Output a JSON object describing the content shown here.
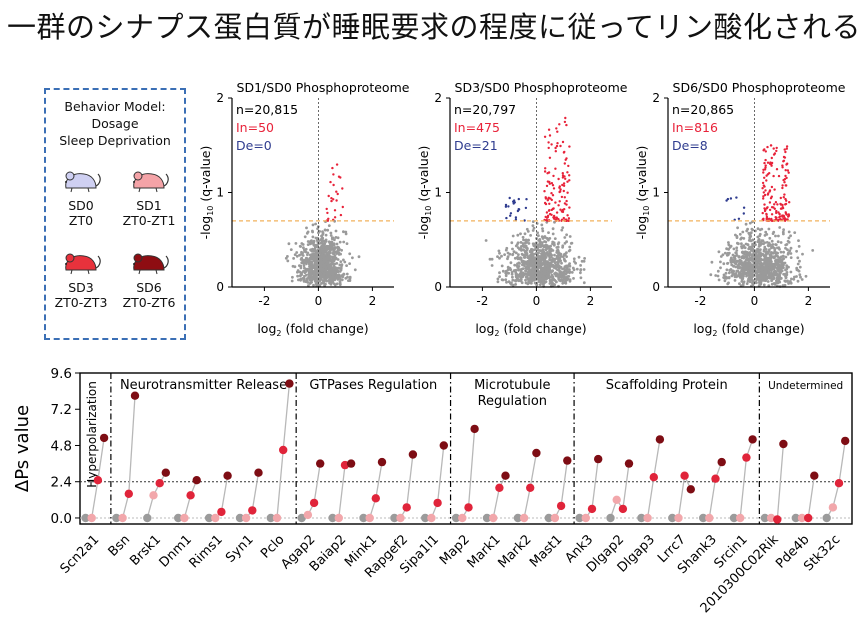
{
  "title": "一群のシナプス蛋白質が睡眠要求の程度に従ってリン酸化される",
  "model": {
    "title_lines": [
      "Behavior Model:",
      "Dosage",
      "Sleep Deprivation"
    ],
    "groups": [
      {
        "name": "SD0",
        "time": "ZT0",
        "color": "#cfd0f2"
      },
      {
        "name": "SD1",
        "time": "ZT0-ZT1",
        "color": "#f4a3a7"
      },
      {
        "name": "SD3",
        "time": "ZT0-ZT3",
        "color": "#e8323c"
      },
      {
        "name": "SD6",
        "time": "ZT0-ZT6",
        "color": "#8e0d12"
      }
    ]
  },
  "volcano": {
    "xlabel": "log2 (fold change)",
    "ylabel": "-log10 (q-value)",
    "xticks": [
      -2,
      0,
      2
    ],
    "yticks": [
      0,
      1,
      2
    ],
    "xlim": [
      -3.2,
      2.8
    ],
    "ylim": [
      0,
      2
    ],
    "threshold_y": 0.7,
    "panels": [
      {
        "title": "SD1/SD0 Phosphoproteome",
        "n": "n=20,815",
        "up": "In=50",
        "down": "De=0",
        "up_count": 50,
        "down_count": 0,
        "spread": 0.55,
        "upmax": 1.4
      },
      {
        "title": "SD3/SD0 Phosphoproteome",
        "n": "n=20,797",
        "up": "In=475",
        "down": "De=21",
        "up_count": 475,
        "down_count": 21,
        "spread": 0.85,
        "upmax": 1.8
      },
      {
        "title": "SD6/SD0 Phosphoproteome",
        "n": "n=20,865",
        "up": "In=816",
        "down": "De=8",
        "up_count": 816,
        "down_count": 8,
        "spread": 0.9,
        "upmax": 1.5
      }
    ],
    "colors": {
      "up": "#e8233a",
      "down": "#2f3c8f",
      "ns": "#9a9a9a",
      "threshold": "#f2b25c"
    }
  },
  "chart_data": {
    "type": "scatter",
    "ylabel": "ΔPs value",
    "ylim": [
      -0.4,
      9.6
    ],
    "yticks": [
      "0.0",
      "2.4",
      "4.8",
      "7.2",
      "9.6"
    ],
    "threshold": 2.4,
    "groups": [
      {
        "label": "Hyperpolarization",
        "span": [
          0,
          0
        ]
      },
      {
        "label": "Neurotransmitter Release",
        "span": [
          1,
          6
        ]
      },
      {
        "label": "GTPases Regulation",
        "span": [
          7,
          11
        ]
      },
      {
        "label": "Microtubule Regulation",
        "span": [
          12,
          15
        ]
      },
      {
        "label": "Scaffolding Protein",
        "span": [
          16,
          21
        ]
      },
      {
        "label": "Undetermined",
        "span": [
          22,
          24
        ]
      }
    ],
    "series_order": [
      "SD0",
      "SD1",
      "SD3",
      "SD6"
    ],
    "genes": [
      {
        "name": "Scn2a1",
        "values": [
          0,
          0,
          2.5,
          5.3
        ]
      },
      {
        "name": "Bsn",
        "values": [
          0,
          0,
          1.6,
          8.1
        ]
      },
      {
        "name": "Brsk1",
        "values": [
          0,
          1.5,
          2.3,
          3.0
        ]
      },
      {
        "name": "Dnm1",
        "values": [
          0,
          0,
          1.5,
          2.5
        ]
      },
      {
        "name": "Rims1",
        "values": [
          0,
          0,
          0.4,
          2.8
        ]
      },
      {
        "name": "Syn1",
        "values": [
          0,
          0,
          0.5,
          3.0
        ]
      },
      {
        "name": "Pclo",
        "values": [
          0,
          0,
          4.5,
          8.9
        ]
      },
      {
        "name": "Agap2",
        "values": [
          0,
          0.2,
          1.0,
          3.6
        ]
      },
      {
        "name": "Baiap2",
        "values": [
          0,
          0,
          3.5,
          3.6
        ]
      },
      {
        "name": "Mink1",
        "values": [
          0,
          0,
          1.3,
          3.7
        ]
      },
      {
        "name": "Rapgef2",
        "values": [
          0,
          0,
          0.7,
          4.2
        ]
      },
      {
        "name": "Sipa1l1",
        "values": [
          0,
          0,
          1.0,
          4.8
        ]
      },
      {
        "name": "Map2",
        "values": [
          0,
          0,
          0.7,
          5.9
        ]
      },
      {
        "name": "Mark1",
        "values": [
          0,
          0,
          2.0,
          2.8
        ]
      },
      {
        "name": "Mark2",
        "values": [
          0,
          0,
          2.0,
          4.3
        ]
      },
      {
        "name": "Mast1",
        "values": [
          0,
          0,
          0.8,
          3.8
        ]
      },
      {
        "name": "Ank3",
        "values": [
          0,
          0,
          0.6,
          3.9
        ]
      },
      {
        "name": "Dlgap2",
        "values": [
          0,
          1.2,
          0.6,
          3.6
        ]
      },
      {
        "name": "Dlgap3",
        "values": [
          0,
          0,
          2.7,
          5.2
        ]
      },
      {
        "name": "Lrrc7",
        "values": [
          0,
          0,
          2.8,
          1.9
        ]
      },
      {
        "name": "Shank3",
        "values": [
          0,
          0,
          2.6,
          3.7
        ]
      },
      {
        "name": "Srcin1",
        "values": [
          0,
          0,
          4.0,
          5.2
        ]
      },
      {
        "name": "2010300C02Rik",
        "values": [
          0,
          0,
          -0.1,
          4.9
        ]
      },
      {
        "name": "Pde4b",
        "values": [
          0,
          0,
          0.0,
          2.8
        ]
      },
      {
        "name": "Stk32c",
        "values": [
          0,
          0.7,
          2.3,
          5.1
        ]
      }
    ],
    "colors": {
      "SD0": "#9b9b9b",
      "SD1": "#f2a7ab",
      "SD3": "#e0243a",
      "SD6": "#7e0d14",
      "line": "#b8b8b8"
    }
  }
}
